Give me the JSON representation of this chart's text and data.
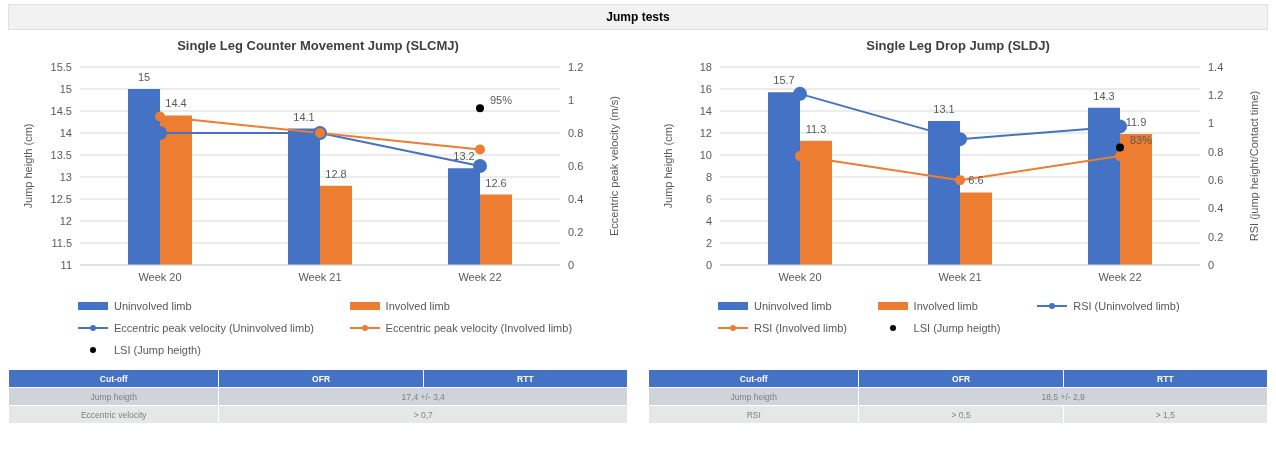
{
  "chart_data": [
    {
      "type": "other",
      "title": "Jump tests"
    },
    {
      "type": "bar",
      "title": "Single Leg Counter Movement Jump (SLCMJ)",
      "ylabel": "Jump heigth (cm)",
      "y2label": "Eccentric peak velocity (m/s)",
      "categories": [
        "Week 20",
        "Week 21",
        "Week 22"
      ],
      "series": [
        {
          "type": "bar",
          "name": "Uninvolved limb",
          "color": "#4472c4",
          "values": [
            15,
            14.1,
            13.2
          ],
          "value_labels": [
            "15",
            "14.1",
            "13.2"
          ]
        },
        {
          "type": "bar",
          "name": "Involved limb",
          "color": "#ed7d31",
          "values": [
            14.4,
            12.8,
            12.6
          ],
          "value_labels": [
            "14.4",
            "12.8",
            "12.6"
          ]
        },
        {
          "type": "line",
          "name": "Eccentric peak velocity (Uninvolved limb)",
          "color": "#4472c4",
          "axis": "y2",
          "values": [
            0.8,
            0.8,
            0.6
          ]
        },
        {
          "type": "line",
          "name": "Eccentric peak velocity (Involved limb)",
          "color": "#ed7d31",
          "axis": "y2",
          "values": [
            0.9,
            0.8,
            0.7
          ]
        },
        {
          "type": "scatter",
          "name": "LSI (Jump heigth)",
          "color": "#000000",
          "axis": "y2",
          "values": [
            null,
            null,
            0.95
          ],
          "value_labels": [
            null,
            null,
            "95%"
          ]
        }
      ],
      "ylim": [
        11,
        15.5
      ],
      "yticks": [
        11,
        11.5,
        12,
        12.5,
        13,
        13.5,
        14,
        14.5,
        15,
        15.5
      ],
      "y2lim": [
        0,
        1.2
      ],
      "y2ticks": [
        0,
        0.2,
        0.4,
        0.6,
        0.8,
        1,
        1.2
      ],
      "grid": "y",
      "legend": "bottom",
      "marker": "circle"
    },
    {
      "type": "bar",
      "title": "Single Leg Drop Jump (SLDJ)",
      "ylabel": "Jump heigth (cm)",
      "y2label": "RSI (jump height/Contact time)",
      "categories": [
        "Week 20",
        "Week 21",
        "Week 22"
      ],
      "series": [
        {
          "type": "bar",
          "name": "Uninvolved limb",
          "color": "#4472c4",
          "values": [
            15.7,
            13.1,
            14.3
          ],
          "value_labels": [
            "15.7",
            "13.1",
            "14.3"
          ]
        },
        {
          "type": "bar",
          "name": "Involved limb",
          "color": "#ed7d31",
          "values": [
            11.3,
            6.6,
            11.9
          ],
          "value_labels": [
            "11.3",
            "6.6",
            "11.9"
          ]
        },
        {
          "type": "line",
          "name": "RSI (Uninvolved limb)",
          "color": "#4472c4",
          "axis": "y2",
          "values": [
            1.21,
            0.89,
            0.98
          ]
        },
        {
          "type": "line",
          "name": "RSI (Involved limb)",
          "color": "#ed7d31",
          "axis": "y2",
          "values": [
            0.77,
            0.6,
            0.77
          ]
        },
        {
          "type": "scatter",
          "name": "LSI (Jump heigth)",
          "color": "#000000",
          "axis": "y2",
          "values": [
            null,
            null,
            0.83
          ],
          "value_labels": [
            null,
            null,
            "83%"
          ]
        }
      ],
      "ylim": [
        0,
        18
      ],
      "yticks": [
        0,
        2,
        4,
        6,
        8,
        10,
        12,
        14,
        16,
        18
      ],
      "y2lim": [
        0,
        1.4
      ],
      "y2ticks": [
        0,
        0.2,
        0.4,
        0.6,
        0.8,
        1,
        1.2,
        1.4
      ],
      "grid": "y",
      "legend": "bottom",
      "marker": "circle"
    },
    {
      "type": "other",
      "categories": [
        "Cut-off",
        "OFR",
        "RTT"
      ],
      "y_categories": [
        "Jump heigth",
        "Eccentric velocity"
      ],
      "cell_labels": [
        [
          "17,4 +/- 3,4"
        ],
        [
          "> 0,7"
        ]
      ]
    },
    {
      "type": "other",
      "categories": [
        "Cut-off",
        "OFR",
        "RTT"
      ],
      "y_categories": [
        "Jump heigth",
        "RSI"
      ],
      "cell_labels": [
        [
          "18,5 +/- 2,9"
        ],
        [
          "> 0,5",
          "> 1,5"
        ]
      ]
    }
  ]
}
